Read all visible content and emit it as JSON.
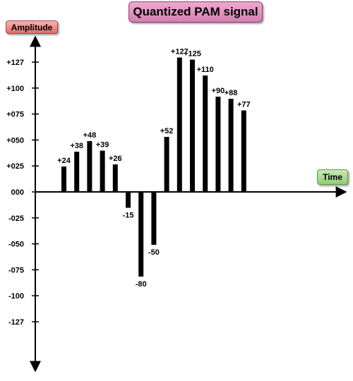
{
  "chart_data": {
    "type": "bar",
    "title": "Quantized PAM signal",
    "ylabel": "Amplitude",
    "xlabel": "Time",
    "ylim": [
      -145,
      145
    ],
    "yticks": [
      {
        "value": 127,
        "label": "+127"
      },
      {
        "value": 104,
        "label": "+100"
      },
      {
        "value": 81,
        "label": "+075"
      },
      {
        "value": 58,
        "label": "+050"
      },
      {
        "value": 35,
        "label": "+025"
      },
      {
        "value": 12,
        "label": "000"
      },
      {
        "value": -11,
        "label": "-025"
      },
      {
        "value": -34,
        "label": "-050"
      },
      {
        "value": -57,
        "label": "-075"
      },
      {
        "value": -80,
        "label": "-100"
      },
      {
        "value": -103,
        "label": "-127"
      }
    ],
    "values": [
      24,
      38,
      48,
      39,
      26,
      -15,
      -80,
      -50,
      52,
      127,
      125,
      110,
      90,
      88,
      77
    ],
    "labels": [
      "+24",
      "+38",
      "+48",
      "+39",
      "+26",
      "-15",
      "-80",
      "-50",
      "+52",
      "+127",
      "+125",
      "+110",
      "+90",
      "+88",
      "+77"
    ],
    "grid": false
  }
}
